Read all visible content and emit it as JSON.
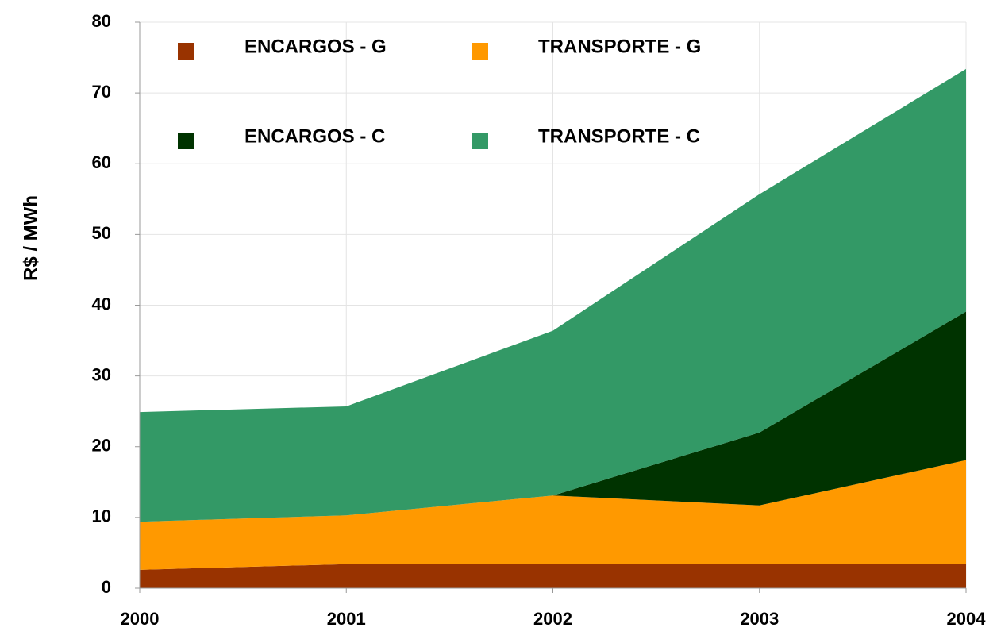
{
  "chart_data": {
    "type": "stacked_area",
    "y_label": "R$ / MWh",
    "categories": [
      "2000",
      "2001",
      "2002",
      "2003",
      "2004"
    ],
    "series": [
      {
        "name": "ENCARGOS - G",
        "color": "#993300",
        "values": [
          2.6,
          3.4,
          3.4,
          3.4,
          3.4
        ]
      },
      {
        "name": "TRANSPORTE - G",
        "color": "#ff9900",
        "values": [
          6.8,
          6.9,
          9.7,
          8.3,
          14.7
        ]
      },
      {
        "name": "ENCARGOS - C",
        "color": "#003300",
        "values": [
          0,
          0,
          0,
          10.3,
          21.0
        ]
      },
      {
        "name": "TRANSPORTE - C",
        "color": "#339966",
        "values": [
          15.5,
          15.4,
          23.3,
          33.7,
          34.3
        ]
      }
    ],
    "ylim": [
      0,
      80
    ],
    "yticks": [
      0,
      10,
      20,
      30,
      40,
      50,
      60,
      70,
      80
    ],
    "grid": true
  }
}
